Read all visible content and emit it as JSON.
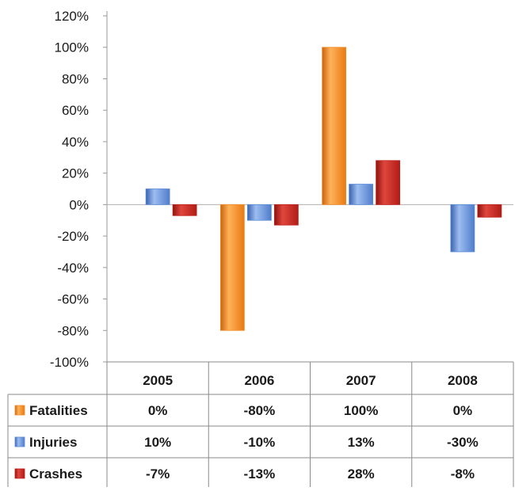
{
  "chart_data": {
    "type": "bar",
    "categories": [
      "2005",
      "2006",
      "2007",
      "2008"
    ],
    "series": [
      {
        "name": "Fatalities",
        "values": [
          0,
          -80,
          100,
          0
        ],
        "labels": [
          "0%",
          "-80%",
          "100%",
          "0%"
        ],
        "color": "#F28C28"
      },
      {
        "name": "Injuries",
        "values": [
          10,
          -10,
          13,
          -30
        ],
        "labels": [
          "10%",
          "-10%",
          "13%",
          "-30%"
        ],
        "color": "#5B8BD8"
      },
      {
        "name": "Crashes",
        "values": [
          -7,
          -13,
          28,
          -8
        ],
        "labels": [
          "-7%",
          "-13%",
          "28%",
          "-8%"
        ],
        "color": "#C0201A"
      }
    ],
    "y_ticks": [
      "120%",
      "100%",
      "80%",
      "60%",
      "40%",
      "20%",
      "0%",
      "-20%",
      "-40%",
      "-60%",
      "-80%",
      "-100%"
    ],
    "y_tick_values": [
      120,
      100,
      80,
      60,
      40,
      20,
      0,
      -20,
      -40,
      -60,
      -80,
      -100
    ],
    "ylim": [
      -100,
      120
    ],
    "title": "",
    "xlabel": "",
    "ylabel": "",
    "legend": "data-table"
  }
}
